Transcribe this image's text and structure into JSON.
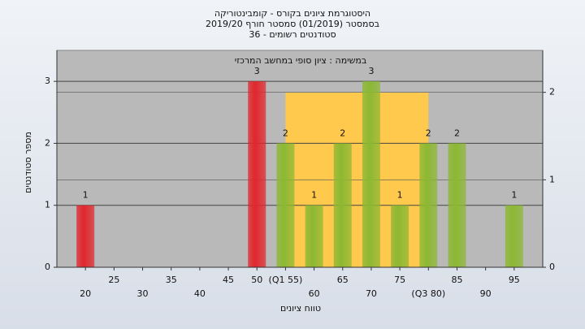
{
  "chart_data": {
    "type": "bar",
    "title": "היסטוגרמת ציונים בקורס - קומבינטוריקה",
    "subtitle": "בסמסטר  (01/2019)  סמסטר חורף 2019/20",
    "subtitle2": "סטודנטים רשומים - 36",
    "annotation": "במשימה : ציון סופי במחשב המרכזי",
    "x_label": "טווח ציונים",
    "y_label": "מספר סטודנטים",
    "x": [
      20,
      25,
      30,
      35,
      40,
      45,
      50,
      55,
      60,
      65,
      70,
      75,
      80,
      85,
      90,
      95
    ],
    "values": [
      1,
      0,
      0,
      0,
      0,
      0,
      3,
      2,
      1,
      2,
      3,
      1,
      2,
      2,
      0,
      1
    ],
    "colors": [
      "#e0262c",
      "#8cb832",
      "#8cb832",
      "#8cb832",
      "#8cb832",
      "#8cb832",
      "#e0262c",
      "#8cb832",
      "#8cb832",
      "#8cb832",
      "#8cb832",
      "#8cb832",
      "#8cb832",
      "#8cb832",
      "#8cb832",
      "#8cb832"
    ],
    "xlim": [
      15,
      100
    ],
    "xticks": [
      20,
      25,
      30,
      35,
      40,
      45,
      50,
      {
        "value": 55,
        "label": "(Q1 55)"
      },
      60,
      65,
      70,
      75,
      {
        "value": 80,
        "label": "(Q3 80)"
      },
      85,
      90,
      95
    ],
    "ylim": [
      0,
      3.5
    ],
    "yticks": [
      0,
      1,
      2,
      3
    ],
    "y2lim": [
      0,
      2.48
    ],
    "y2ticks": [
      0,
      1,
      2
    ],
    "box": {
      "x": [
        55,
        80
      ],
      "value": 2,
      "axis": "y2",
      "color": "#ffc94d"
    },
    "grid": true
  }
}
